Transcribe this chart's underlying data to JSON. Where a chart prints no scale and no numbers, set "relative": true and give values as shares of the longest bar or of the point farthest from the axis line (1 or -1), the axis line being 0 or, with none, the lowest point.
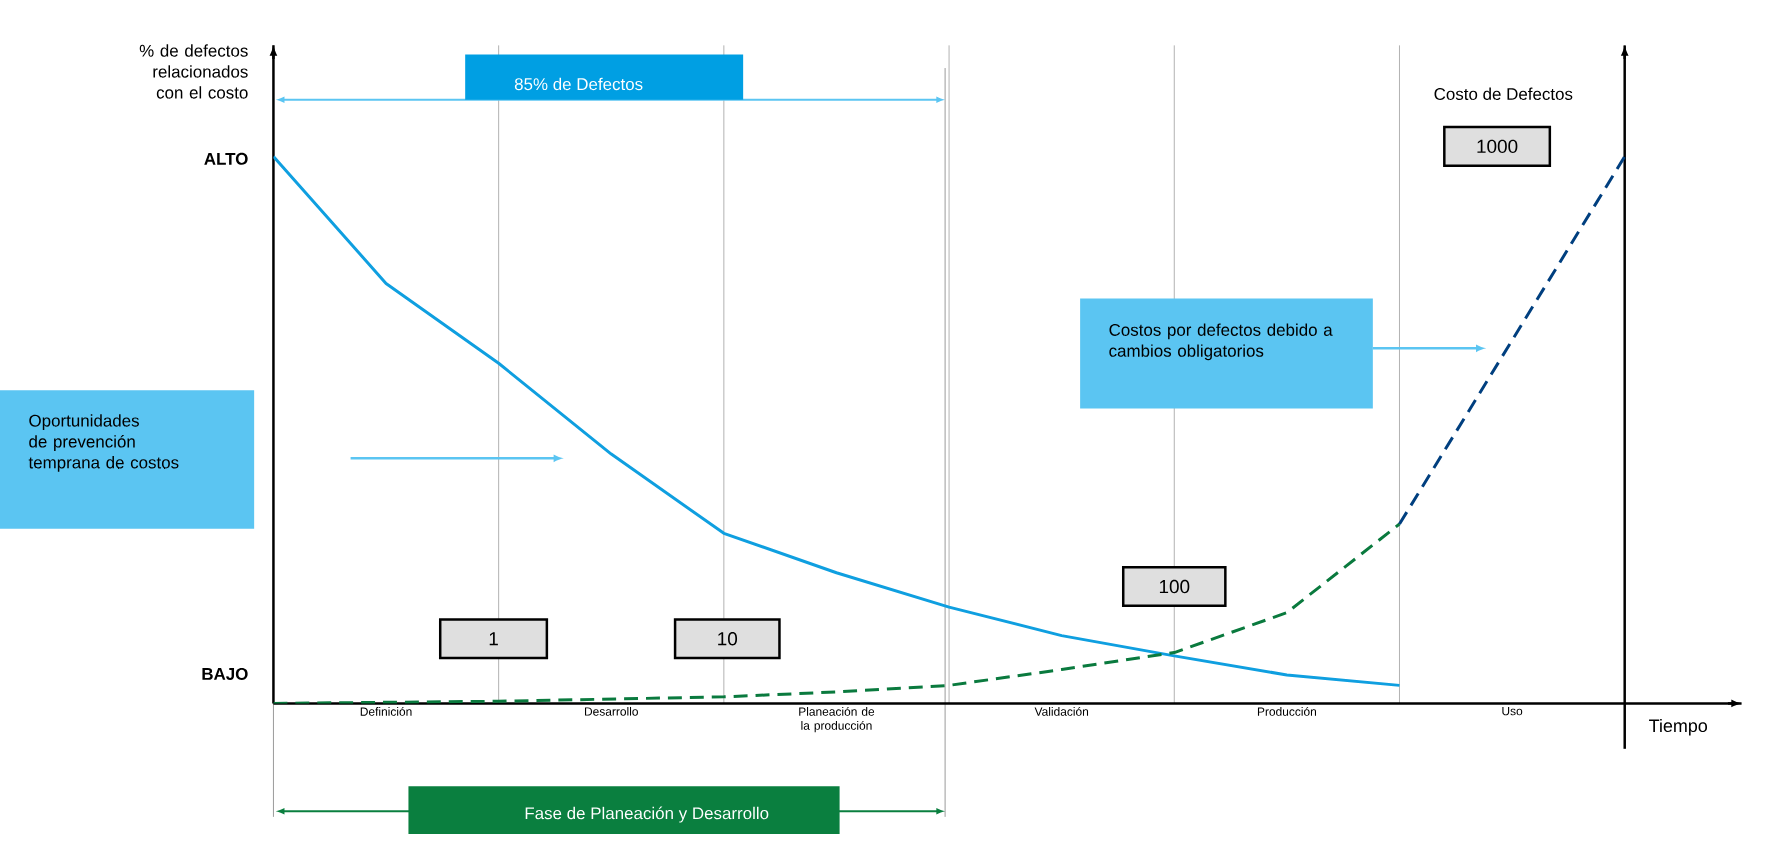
{
  "chart_data": {
    "type": "line",
    "relative": true,
    "xlabel": "Tiempo",
    "ylabel": "% de defectos relacionados con el costo",
    "y2label": "Costo de Defectos",
    "categories": [
      null,
      "Definición",
      null,
      "Desarrollo",
      null,
      "Planeación de la producción",
      null,
      "Validación",
      null,
      "Producción",
      null,
      "Uso",
      null
    ],
    "series": [
      {
        "color": "#0f9fe0",
        "line_style": "solid",
        "values": [
          1,
          0.768,
          0.622,
          0.456,
          0.311,
          0.239,
          0.176,
          0.124,
          0.087,
          0.052,
          0.033,
          null,
          null
        ]
      },
      {
        "color": "#0a7a3e",
        "line_style": "dashed",
        "values": [
          0,
          0.002,
          0.004,
          0.008,
          0.012,
          0.021,
          0.033,
          0.062,
          0.093,
          0.166,
          0.328,
          null,
          null
        ]
      },
      {
        "color": "#003f7f",
        "line_style": "dashed",
        "values": [
          null,
          null,
          null,
          null,
          null,
          null,
          null,
          null,
          null,
          null,
          0.328,
          0.664,
          1
        ]
      }
    ],
    "grid": "x",
    "marker": "none",
    "annotations": [
      "ALTO",
      "BAJO",
      "85% de Defectos",
      "Fase de Planeación y Desarrollo",
      "Oportunidades de prevención temprana de costos",
      "Costos por defectos debido a cambios obligatorios",
      "1",
      "10",
      "100",
      "1000"
    ]
  }
}
